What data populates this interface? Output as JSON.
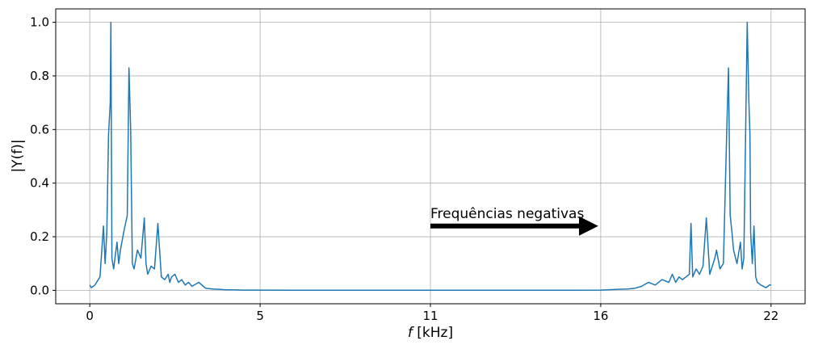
{
  "chart_data": {
    "type": "line",
    "xlabel_prefix": "f",
    "xlabel_unit": "[kHz]",
    "ylabel": "|Y(f)|",
    "xlim": [
      -1,
      21
    ],
    "ylim": [
      -0.05,
      1.05
    ],
    "xticks": [
      {
        "value": 0,
        "label": "0"
      },
      {
        "value": 5,
        "label": "5"
      },
      {
        "value": 10,
        "label": "11"
      },
      {
        "value": 15,
        "label": "16"
      },
      {
        "value": 20,
        "label": "22"
      }
    ],
    "yticks": [
      {
        "value": 0.0,
        "label": "0.0"
      },
      {
        "value": 0.2,
        "label": "0.2"
      },
      {
        "value": 0.4,
        "label": "0.4"
      },
      {
        "value": 0.6,
        "label": "0.6"
      },
      {
        "value": 0.8,
        "label": "0.8"
      },
      {
        "value": 1.0,
        "label": "1.0"
      }
    ],
    "grid": true,
    "line_color": "#1f77b4",
    "series": [
      {
        "x": [
          0,
          0.05,
          0.15,
          0.3,
          0.4,
          0.45,
          0.5,
          0.55,
          0.6,
          0.62,
          0.65,
          0.7,
          0.8,
          0.85,
          0.9,
          1.0,
          1.1,
          1.15,
          1.2,
          1.25,
          1.3,
          1.4,
          1.5,
          1.6,
          1.65,
          1.7,
          1.8,
          1.9,
          2.0,
          2.1,
          2.2,
          2.3,
          2.35,
          2.4,
          2.5,
          2.6,
          2.7,
          2.8,
          2.9,
          3.0,
          3.2,
          3.4,
          3.6,
          3.8,
          4.0,
          4.2,
          4.5,
          4.8,
          5.0,
          6.0,
          8.0,
          10.0,
          12.0,
          14.0,
          15.0,
          15.2,
          15.5,
          15.8,
          16.0,
          16.2,
          16.4,
          16.6,
          16.8,
          17.0,
          17.1,
          17.2,
          17.3,
          17.4,
          17.5,
          17.6,
          17.65,
          17.7,
          17.8,
          17.9,
          18.0,
          18.1,
          18.2,
          18.3,
          18.35,
          18.4,
          18.5,
          18.6,
          18.7,
          18.75,
          18.8,
          18.85,
          18.9,
          19.0,
          19.1,
          19.15,
          19.2,
          19.3,
          19.35,
          19.38,
          19.4,
          19.45,
          19.5,
          19.55,
          19.6,
          19.7,
          19.85,
          19.95,
          20.0
        ],
        "y": [
          0.02,
          0.01,
          0.02,
          0.05,
          0.24,
          0.1,
          0.22,
          0.58,
          0.7,
          1.0,
          0.12,
          0.08,
          0.18,
          0.1,
          0.15,
          0.22,
          0.28,
          0.83,
          0.6,
          0.1,
          0.08,
          0.15,
          0.12,
          0.27,
          0.1,
          0.06,
          0.09,
          0.08,
          0.25,
          0.05,
          0.04,
          0.06,
          0.03,
          0.05,
          0.06,
          0.03,
          0.04,
          0.02,
          0.03,
          0.015,
          0.03,
          0.008,
          0.005,
          0.004,
          0.002,
          0.002,
          0.001,
          0.001,
          0.001,
          0.0005,
          0.0003,
          0.0003,
          0.0003,
          0.0005,
          0.001,
          0.002,
          0.004,
          0.005,
          0.008,
          0.015,
          0.03,
          0.02,
          0.04,
          0.03,
          0.06,
          0.03,
          0.05,
          0.04,
          0.05,
          0.06,
          0.25,
          0.05,
          0.08,
          0.06,
          0.09,
          0.27,
          0.06,
          0.1,
          0.12,
          0.15,
          0.08,
          0.1,
          0.6,
          0.83,
          0.28,
          0.22,
          0.15,
          0.1,
          0.18,
          0.08,
          0.12,
          1.0,
          0.7,
          0.58,
          0.22,
          0.1,
          0.24,
          0.05,
          0.03,
          0.02,
          0.01,
          0.02,
          0.02
        ]
      }
    ],
    "annotation": {
      "text": "Frequências negativas",
      "arrow_from": [
        10,
        0.24
      ],
      "arrow_to": [
        15,
        0.24
      ]
    }
  }
}
